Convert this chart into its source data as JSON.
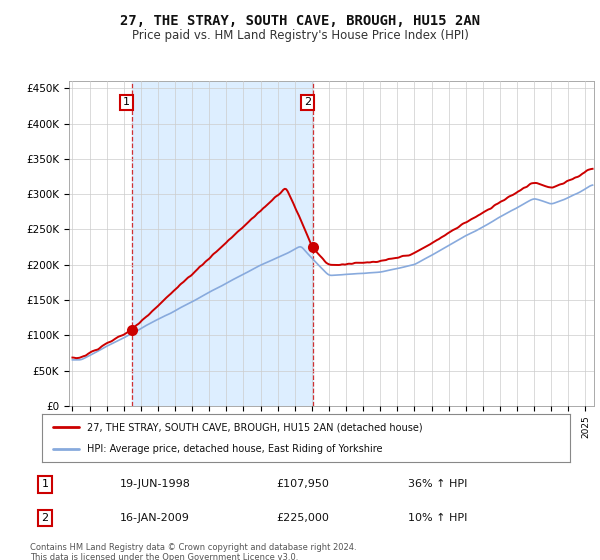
{
  "title": "27, THE STRAY, SOUTH CAVE, BROUGH, HU15 2AN",
  "subtitle": "Price paid vs. HM Land Registry's House Price Index (HPI)",
  "title_fontsize": 10,
  "subtitle_fontsize": 8.5,
  "property_color": "#cc0000",
  "hpi_color": "#88aadd",
  "shade_color": "#ddeeff",
  "background_color": "#ffffff",
  "grid_color": "#cccccc",
  "ylabel_ticks": [
    "£0",
    "£50K",
    "£100K",
    "£150K",
    "£200K",
    "£250K",
    "£300K",
    "£350K",
    "£400K",
    "£450K"
  ],
  "ytick_values": [
    0,
    50000,
    100000,
    150000,
    200000,
    250000,
    300000,
    350000,
    400000,
    450000
  ],
  "ylim": [
    0,
    460000
  ],
  "xlim_start": 1994.8,
  "xlim_end": 2025.5,
  "sale1_year": 1998.47,
  "sale1_price": 107950,
  "sale2_year": 2009.04,
  "sale2_price": 225000,
  "sale1_date": "19-JUN-1998",
  "sale1_amount": "£107,950",
  "sale1_hpi": "36% ↑ HPI",
  "sale2_date": "16-JAN-2009",
  "sale2_amount": "£225,000",
  "sale2_hpi": "10% ↑ HPI",
  "legend_property": "27, THE STRAY, SOUTH CAVE, BROUGH, HU15 2AN (detached house)",
  "legend_hpi": "HPI: Average price, detached house, East Riding of Yorkshire",
  "footer": "Contains HM Land Registry data © Crown copyright and database right 2024.\nThis data is licensed under the Open Government Licence v3.0.",
  "xtick_years": [
    1995,
    1996,
    1997,
    1998,
    1999,
    2000,
    2001,
    2002,
    2003,
    2004,
    2005,
    2006,
    2007,
    2008,
    2009,
    2010,
    2011,
    2012,
    2013,
    2014,
    2015,
    2016,
    2017,
    2018,
    2019,
    2020,
    2021,
    2022,
    2023,
    2024,
    2025
  ]
}
